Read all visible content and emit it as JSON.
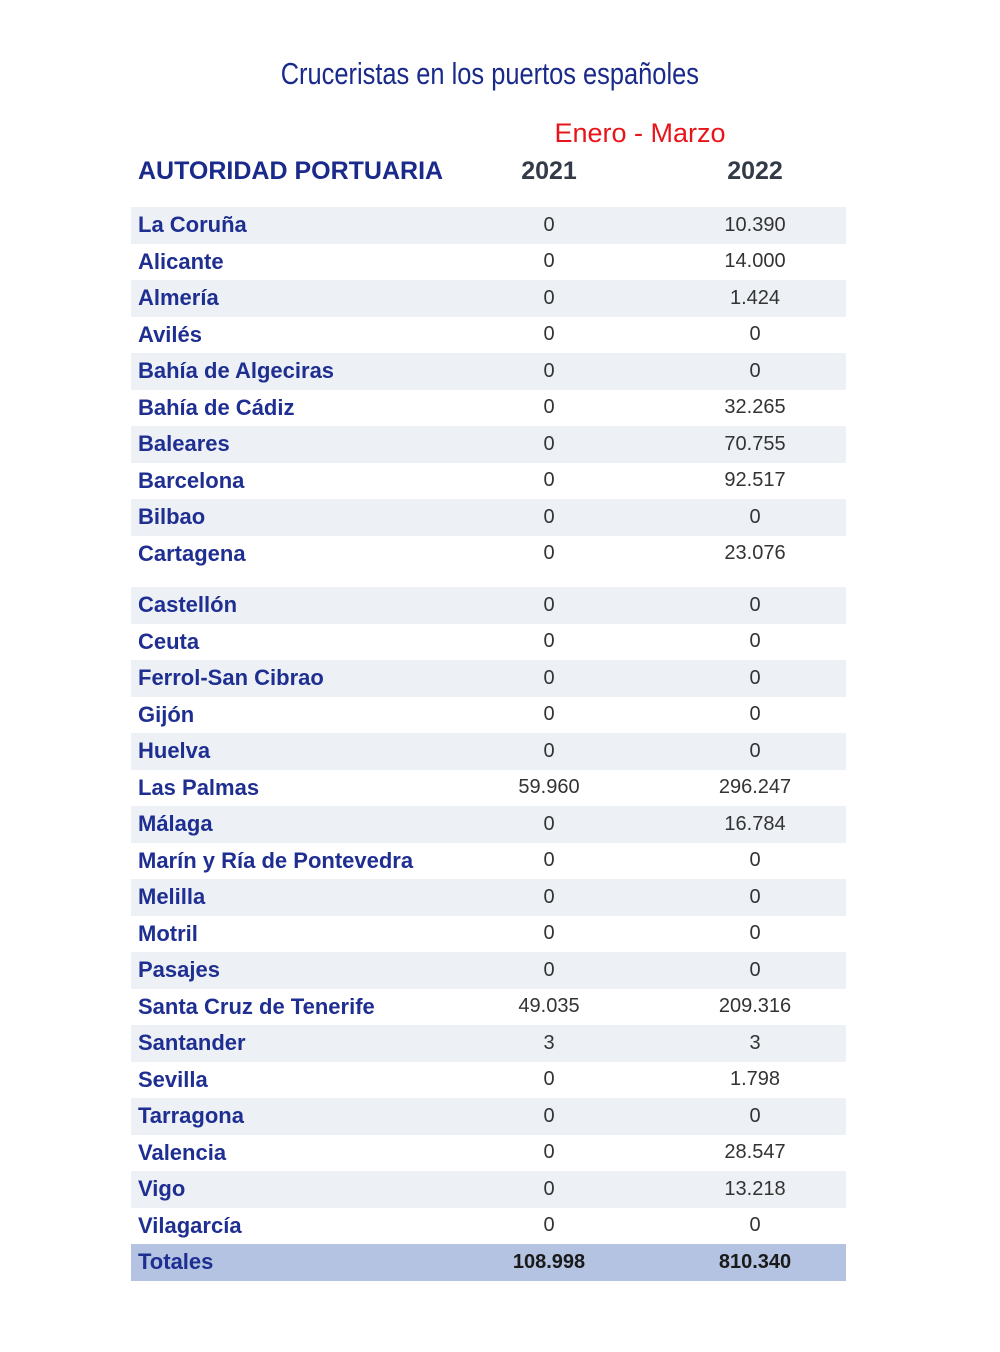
{
  "title": "Cruceristas en los puertos españoles",
  "period": "Enero - Marzo",
  "headers": {
    "authority": "AUTORIDAD PORTUARIA",
    "y2021": "2021",
    "y2022": "2022"
  },
  "rows": [
    {
      "name": "La Coruña",
      "v2021": "0",
      "v2022": "10.390"
    },
    {
      "name": "Alicante",
      "v2021": "0",
      "v2022": "14.000"
    },
    {
      "name": "Almería",
      "v2021": "0",
      "v2022": "1.424"
    },
    {
      "name": "Avilés",
      "v2021": "0",
      "v2022": "0"
    },
    {
      "name": "Bahía de Algeciras",
      "v2021": "0",
      "v2022": "0"
    },
    {
      "name": "Bahía de Cádiz",
      "v2021": "0",
      "v2022": "32.265"
    },
    {
      "name": "Baleares",
      "v2021": "0",
      "v2022": "70.755"
    },
    {
      "name": "Barcelona",
      "v2021": "0",
      "v2022": "92.517"
    },
    {
      "name": "Bilbao",
      "v2021": "0",
      "v2022": "0"
    },
    {
      "name": "Cartagena",
      "v2021": "0",
      "v2022": "23.076"
    },
    {
      "name": "Castellón",
      "v2021": "0",
      "v2022": "0"
    },
    {
      "name": "Ceuta",
      "v2021": "0",
      "v2022": "0"
    },
    {
      "name": "Ferrol-San Cibrao",
      "v2021": "0",
      "v2022": "0"
    },
    {
      "name": "Gijón",
      "v2021": "0",
      "v2022": "0"
    },
    {
      "name": "Huelva",
      "v2021": "0",
      "v2022": "0"
    },
    {
      "name": "Las Palmas",
      "v2021": "59.960",
      "v2022": "296.247"
    },
    {
      "name": "Málaga",
      "v2021": "0",
      "v2022": "16.784"
    },
    {
      "name": "Marín y Ría de Pontevedra",
      "v2021": "0",
      "v2022": "0"
    },
    {
      "name": "Melilla",
      "v2021": "0",
      "v2022": "0"
    },
    {
      "name": "Motril",
      "v2021": "0",
      "v2022": "0"
    },
    {
      "name": "Pasajes",
      "v2021": "0",
      "v2022": "0"
    },
    {
      "name": "Santa Cruz de Tenerife",
      "v2021": "49.035",
      "v2022": "209.316"
    },
    {
      "name": "Santander",
      "v2021": "3",
      "v2022": "3"
    },
    {
      "name": "Sevilla",
      "v2021": "0",
      "v2022": "1.798"
    },
    {
      "name": "Tarragona",
      "v2021": "0",
      "v2022": "0"
    },
    {
      "name": "Valencia",
      "v2021": "0",
      "v2022": "28.547"
    },
    {
      "name": "Vigo",
      "v2021": "0",
      "v2022": "13.218"
    },
    {
      "name": "Vilagarcía",
      "v2021": "0",
      "v2022": "0"
    }
  ],
  "totals": {
    "name": "Totales",
    "v2021": "108.998",
    "v2022": "810.340"
  },
  "colors": {
    "title": "#1a2a8a",
    "period": "#e8141a",
    "stripe": "#edf1f6",
    "total_bg": "#b4c3e1"
  }
}
